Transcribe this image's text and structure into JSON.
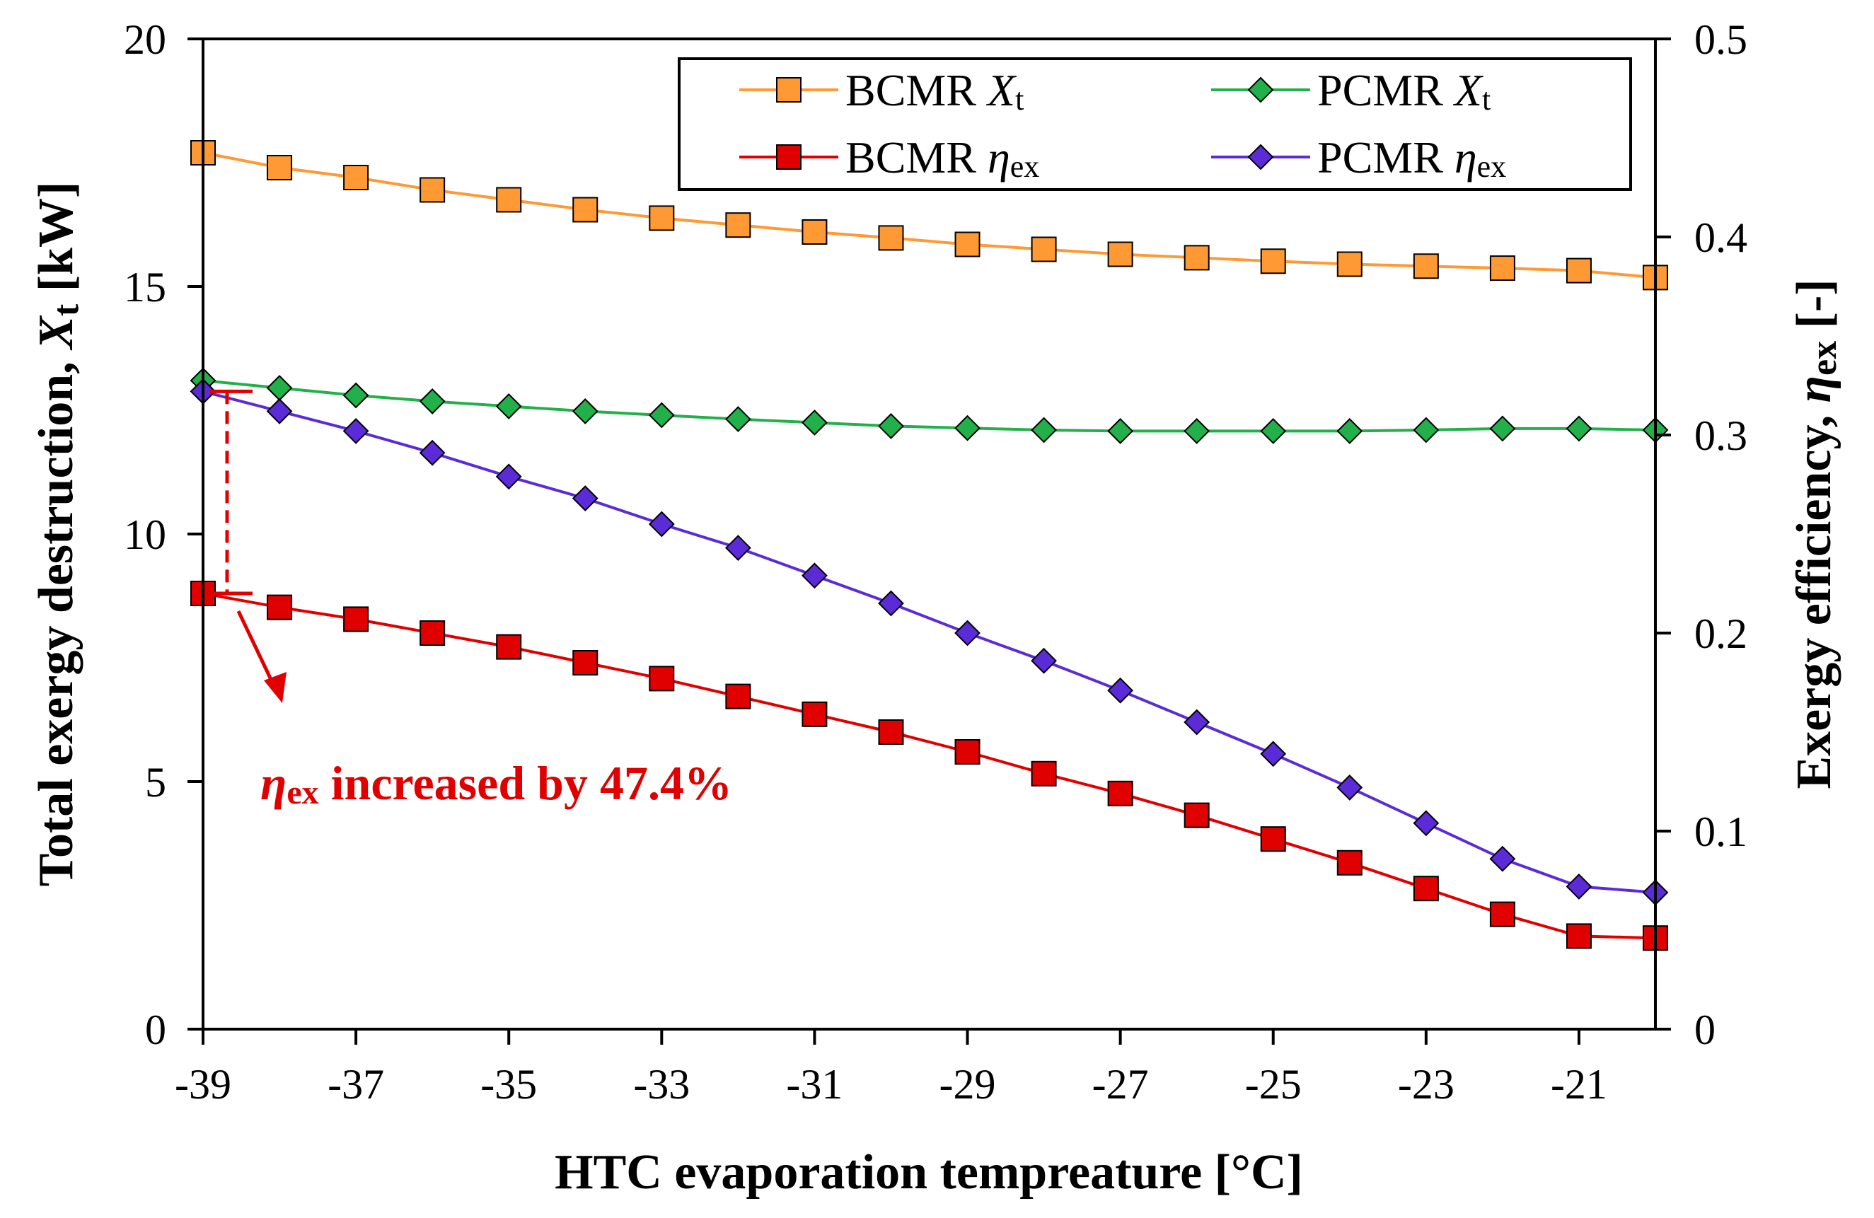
{
  "chart_data": {
    "type": "line",
    "title": "",
    "xlabel": "HTC evaporation tempreature [°C]",
    "ylabel_left": {
      "main": "Total exergy destruction, ",
      "symbol": "X",
      "sub": "t",
      "unit": " [kW]"
    },
    "ylabel_right": {
      "main": "Exergy efficiency, ",
      "symbol": "η",
      "sub": "ex",
      "unit": " [-]"
    },
    "x": [
      -39,
      -38,
      -37,
      -36,
      -35,
      -34,
      -33,
      -32,
      -31,
      -30,
      -29,
      -28,
      -27,
      -26,
      -25,
      -24,
      -23,
      -22,
      -21,
      -20
    ],
    "xlim": [
      -39,
      -20
    ],
    "x_ticks": [
      -39,
      -37,
      -35,
      -33,
      -31,
      -29,
      -27,
      -25,
      -23,
      -21
    ],
    "x_tick_labels": [
      "-39",
      "-37",
      "-35",
      "-33",
      "-31",
      "-29",
      "-27",
      "-25",
      "-23",
      "-21"
    ],
    "ylim_left": [
      0,
      20
    ],
    "y_ticks_left": [
      0,
      5,
      10,
      15,
      20
    ],
    "y_tick_labels_left": [
      "0",
      "5",
      "10",
      "15",
      "20"
    ],
    "ylim_right": [
      0,
      0.5
    ],
    "y_ticks_right": [
      0,
      0.1,
      0.2,
      0.3,
      0.4,
      0.5
    ],
    "y_tick_labels_right": [
      "0",
      "0.1",
      "0.2",
      "0.3",
      "0.4",
      "0.5"
    ],
    "series": [
      {
        "name": "BCMR Xt",
        "label_main": "BCMR ",
        "label_symbol": "X",
        "label_sub": "t",
        "axis": "left",
        "marker": "square",
        "color": "#ff9933",
        "line_color": "#ff9933",
        "values": [
          17.7,
          17.4,
          17.2,
          16.95,
          16.75,
          16.55,
          16.38,
          16.24,
          16.1,
          15.98,
          15.85,
          15.75,
          15.65,
          15.58,
          15.51,
          15.45,
          15.41,
          15.37,
          15.32,
          15.18
        ]
      },
      {
        "name": "PCMR Xt",
        "label_main": "PCMR ",
        "label_symbol": "X",
        "label_sub": "t",
        "axis": "left",
        "marker": "diamond",
        "color": "#22b04a",
        "line_color": "#22b04a",
        "values": [
          13.1,
          12.95,
          12.8,
          12.68,
          12.58,
          12.48,
          12.4,
          12.32,
          12.25,
          12.18,
          12.14,
          12.1,
          12.08,
          12.08,
          12.08,
          12.08,
          12.1,
          12.13,
          12.13,
          12.1
        ]
      },
      {
        "name": "BCMR ηex",
        "label_main": "BCMR ",
        "label_symbol": "η",
        "label_sub": "ex",
        "axis": "right",
        "marker": "square",
        "color": "#e00000",
        "line_color": "#e00000",
        "values": [
          0.22,
          0.213,
          0.207,
          0.2,
          0.193,
          0.185,
          0.177,
          0.168,
          0.159,
          0.15,
          0.14,
          0.129,
          0.119,
          0.108,
          0.096,
          0.084,
          0.071,
          0.058,
          0.047,
          0.046
        ]
      },
      {
        "name": "PCMR ηex",
        "label_main": "PCMR ",
        "label_symbol": "η",
        "label_sub": "ex",
        "axis": "right",
        "marker": "diamond",
        "color": "#5b2bd8",
        "line_color": "#5b2bd8",
        "values": [
          0.322,
          0.312,
          0.302,
          0.291,
          0.279,
          0.268,
          0.255,
          0.243,
          0.229,
          0.215,
          0.2,
          0.186,
          0.171,
          0.155,
          0.139,
          0.122,
          0.104,
          0.086,
          0.072,
          0.069
        ]
      }
    ],
    "annotation": {
      "symbol": "η",
      "sub": "ex",
      "text": " increased by 47.4%",
      "color": "#e00000"
    },
    "legend_position": "top-right",
    "grid": false
  }
}
